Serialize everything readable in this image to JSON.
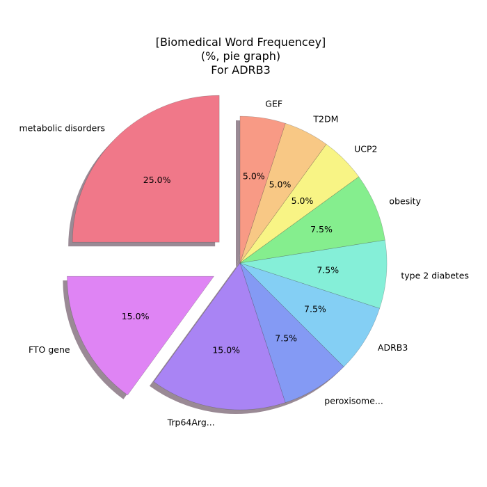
{
  "chart_data": {
    "type": "pie",
    "title": [
      "[Biomedical Word Frequencey]",
      "(%, pie graph)",
      "For ADRB3"
    ],
    "unit": "%",
    "slices": [
      {
        "label": "metabolic disorders",
        "value": 25.0,
        "pct_label": "25.0%",
        "color": "#f07889",
        "exploded": true
      },
      {
        "label": "FTO gene",
        "value": 15.0,
        "pct_label": "15.0%",
        "color": "#df84f4",
        "exploded": true
      },
      {
        "label": "Trp64Arg...",
        "value": 15.0,
        "pct_label": "15.0%",
        "color": "#a984f4",
        "exploded": false
      },
      {
        "label": "peroxisome...",
        "value": 7.5,
        "pct_label": "7.5%",
        "color": "#849af4",
        "exploded": false
      },
      {
        "label": "ADRB3",
        "value": 7.5,
        "pct_label": "7.5%",
        "color": "#84cff4",
        "exploded": false
      },
      {
        "label": "type 2 diabetes",
        "value": 7.5,
        "pct_label": "7.5%",
        "color": "#85efd8",
        "exploded": false
      },
      {
        "label": "obesity",
        "value": 7.5,
        "pct_label": "7.5%",
        "color": "#85ee8e",
        "exploded": false
      },
      {
        "label": "UCP2",
        "value": 5.0,
        "pct_label": "5.0%",
        "color": "#f8f485",
        "exploded": false
      },
      {
        "label": "T2DM",
        "value": 5.0,
        "pct_label": "5.0%",
        "color": "#f8c885",
        "exploded": false
      },
      {
        "label": "GEF",
        "value": 5.0,
        "pct_label": "5.0%",
        "color": "#f89a85",
        "exploded": false
      }
    ],
    "start_angle_deg": 90,
    "direction": "counterclockwise",
    "shadow": true
  }
}
